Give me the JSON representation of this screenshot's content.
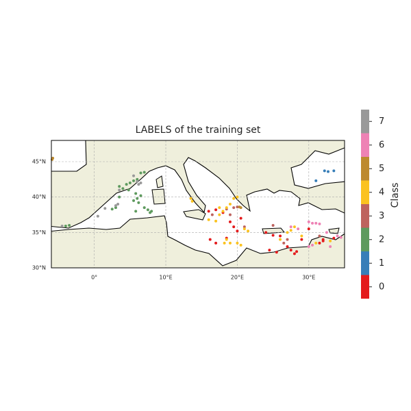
{
  "chart_data": {
    "type": "scatter",
    "title": "LABELS of the training set",
    "xlim": [
      -6,
      35
    ],
    "ylim": [
      30,
      48
    ],
    "grid": true,
    "xticks": [
      {
        "value": 0,
        "label": "0°"
      },
      {
        "value": 10,
        "label": "10°E"
      },
      {
        "value": 20,
        "label": "20°E"
      },
      {
        "value": 30,
        "label": "30°E"
      }
    ],
    "yticks": [
      {
        "value": 30,
        "label": "30°N"
      },
      {
        "value": 35,
        "label": "35°N"
      },
      {
        "value": 40,
        "label": "40°N"
      },
      {
        "value": 45,
        "label": "45°N"
      }
    ],
    "colorbar": {
      "label": "Class",
      "ticks": [
        0,
        1,
        2,
        3,
        4,
        5,
        6,
        7
      ]
    },
    "series": [
      {
        "color": "#e41a1c",
        "x": [
          16,
          17,
          18,
          19,
          19.5,
          20,
          16.2,
          17,
          18.5,
          24,
          25,
          26,
          27,
          27.5,
          28,
          28.3,
          29,
          31.5,
          32,
          32,
          33.5,
          24.5,
          25.5,
          30,
          20.5
        ],
        "y": [
          38,
          38.2,
          37.8,
          36.5,
          35.8,
          35.2,
          34,
          33.5,
          34.2,
          35,
          34.6,
          34.5,
          33,
          32.5,
          32,
          32.3,
          34,
          33.5,
          34,
          33.8,
          34.2,
          32.5,
          32.2,
          35.5,
          37
        ]
      },
      {
        "color": "#377eb8",
        "x": [
          31,
          32.2,
          32.7,
          33.5
        ],
        "y": [
          42.3,
          43.7,
          43.6,
          43.7
        ]
      },
      {
        "color": "#5e9a5e",
        "x": [
          3.5,
          4,
          4.5,
          5,
          5.5,
          6,
          6.5,
          7,
          5.8,
          6,
          5.5,
          6.2,
          7,
          7.5,
          8,
          3,
          2.5,
          6.5,
          4.8,
          3.5,
          -4,
          -3.5,
          5.8,
          7.8
        ],
        "y": [
          41.5,
          41.2,
          41.8,
          42,
          42.3,
          42.5,
          43.4,
          43.5,
          40.5,
          39.8,
          39.5,
          39.2,
          38.5,
          38.2,
          38,
          38.5,
          38.3,
          40.2,
          41,
          40,
          35.9,
          36,
          38,
          37.8
        ]
      },
      {
        "color": "#be635e",
        "x": [
          18.5,
          19,
          19.5,
          20,
          21,
          25,
          26.5,
          27,
          31.5,
          16.5
        ],
        "y": [
          38.3,
          37.5,
          38.5,
          38.6,
          35.8,
          36,
          33.5,
          34,
          34.5,
          37.5
        ]
      },
      {
        "color": "#fbc21f",
        "x": [
          13.5,
          13.7,
          16,
          17,
          17.5,
          18,
          18.5,
          19,
          19.5,
          20,
          18.5,
          19,
          20,
          20.5,
          21,
          21.5,
          26,
          27,
          27.5,
          28,
          29,
          31,
          33,
          17.5,
          18.2
        ],
        "y": [
          39.8,
          39.4,
          36.8,
          36.6,
          37.5,
          38,
          38.5,
          39,
          39.8,
          40,
          34,
          33.5,
          33.5,
          33.2,
          35.5,
          35.2,
          34,
          35,
          35.3,
          35.8,
          34.5,
          33.5,
          33.8,
          38.5,
          33.5
        ]
      },
      {
        "color": "#bd8a2f",
        "x": [
          -5.8,
          -5.9,
          20.3,
          20.5
        ],
        "y": [
          45.5,
          45.3,
          38.6,
          38.5
        ]
      },
      {
        "color": "#ee82b5",
        "x": [
          30,
          30.5,
          31,
          31.5,
          30,
          30.5,
          33,
          34,
          34.5,
          27.5,
          28.5,
          32.5
        ],
        "y": [
          36.5,
          36.3,
          36.3,
          36.2,
          33,
          33.2,
          33,
          34.5,
          34.3,
          35.8,
          35.5,
          35
        ]
      },
      {
        "color": "#999999",
        "x": [
          -4.5,
          3,
          3.3,
          1.5,
          0.5,
          6,
          6.5,
          5.5,
          3.5,
          6.2
        ],
        "y": [
          35.9,
          38.8,
          39,
          38.4,
          37.3,
          42.2,
          42,
          43,
          41,
          41.8
        ]
      }
    ]
  }
}
